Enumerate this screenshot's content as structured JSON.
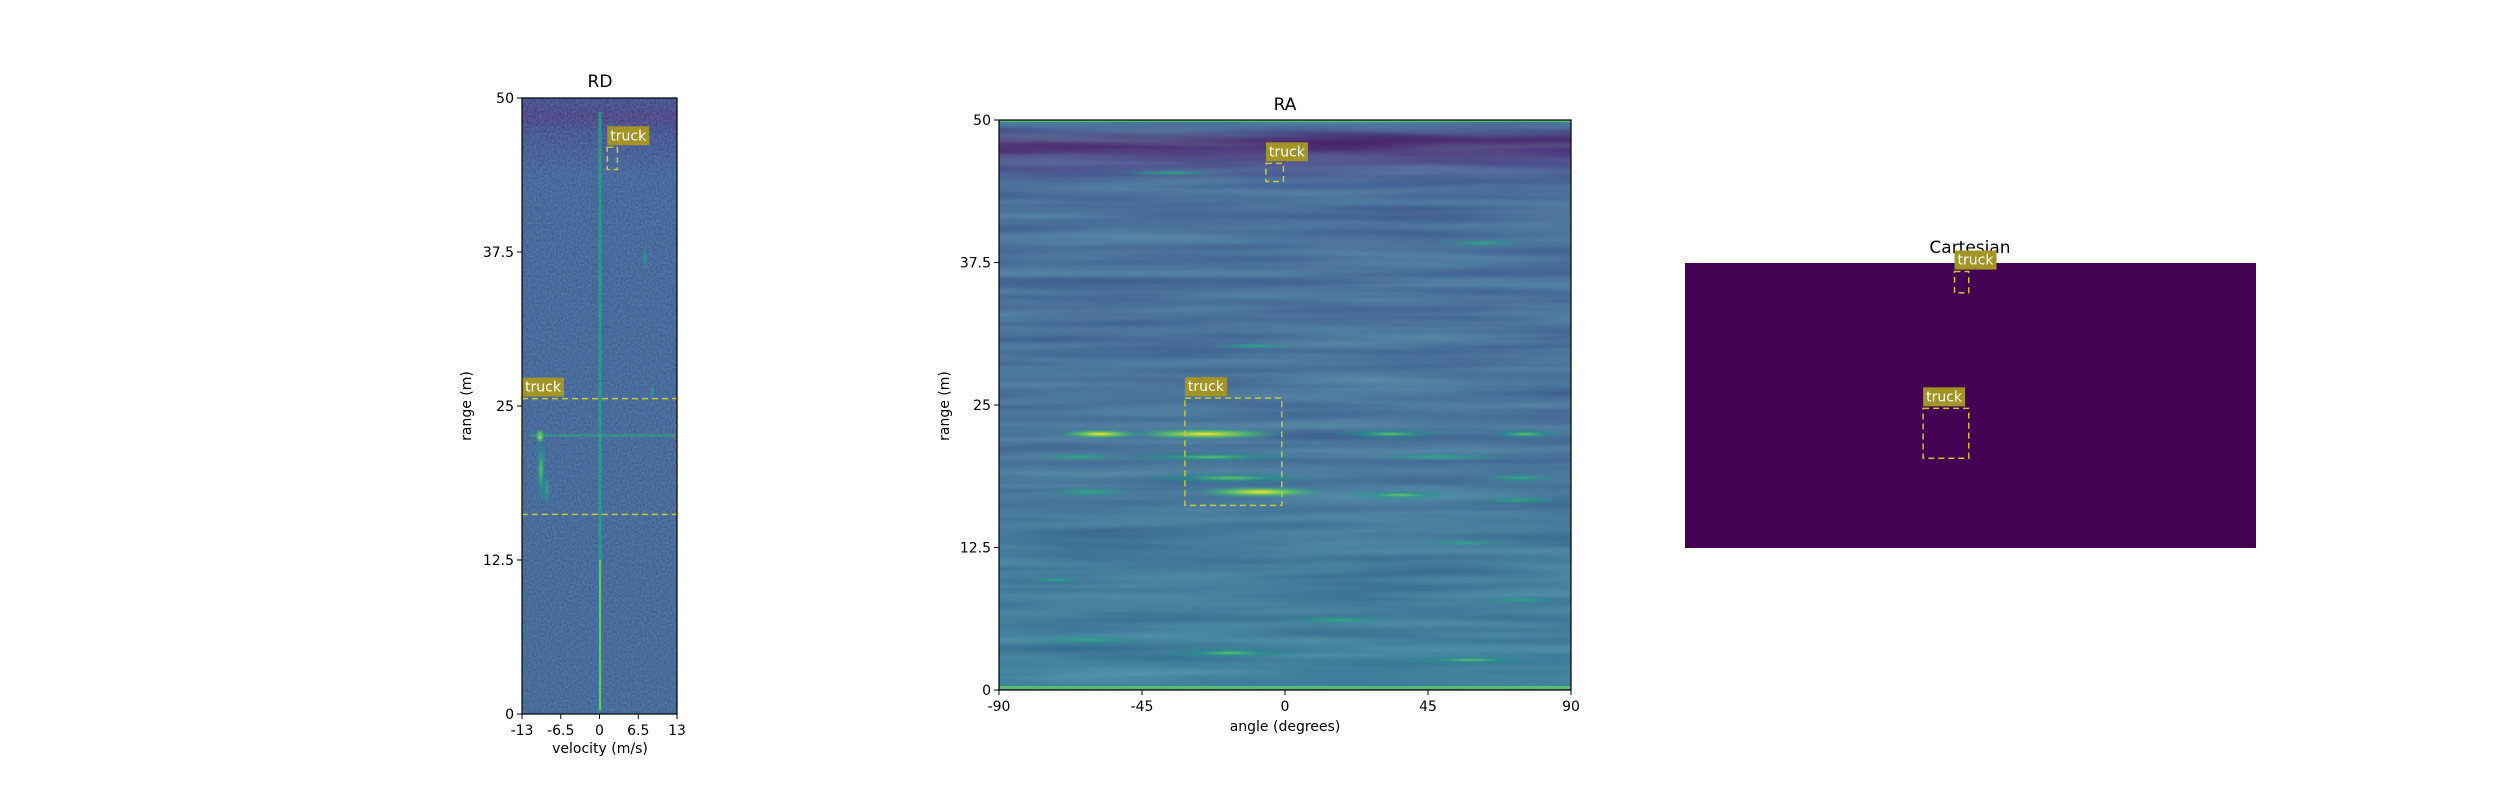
{
  "chart_data": [
    {
      "type": "heatmap",
      "title": "RD",
      "xlabel": "velocity (m/s)",
      "ylabel": "range (m)",
      "xlim": [
        -13,
        13
      ],
      "ylim": [
        0,
        50
      ],
      "xticks": [
        "-13",
        "-6.5",
        "0",
        "6.5",
        "13"
      ],
      "yticks": [
        "0",
        "12.5",
        "25",
        "37.5",
        "50"
      ],
      "colormap": "viridis",
      "detections": [
        {
          "label": "truck",
          "x_range": [
            1.3,
            3.0
          ],
          "y_range": [
            44.2,
            46.0
          ]
        },
        {
          "label": "truck",
          "x_range": [
            -13,
            13
          ],
          "y_range": [
            16.2,
            25.6
          ]
        }
      ]
    },
    {
      "type": "heatmap",
      "title": "RA",
      "xlabel": "angle (degrees)",
      "ylabel": "range (m)",
      "xlim": [
        -90,
        90
      ],
      "ylim": [
        0,
        50
      ],
      "xticks": [
        "-90",
        "-45",
        "0",
        "45",
        "90"
      ],
      "yticks": [
        "0",
        "12.5",
        "25",
        "37.5",
        "50"
      ],
      "colormap": "viridis",
      "detections": [
        {
          "label": "truck",
          "x_range": [
            -6,
            -0.5
          ],
          "y_range": [
            44.6,
            46.2
          ]
        },
        {
          "label": "truck",
          "x_range": [
            -31.5,
            -1
          ],
          "y_range": [
            16.2,
            25.6
          ]
        }
      ]
    },
    {
      "type": "heatmap",
      "title": "Cartesian",
      "xlabel": "",
      "ylabel": "",
      "background": "#440154",
      "detections": [
        {
          "label": "truck",
          "x_range": [
            0.472,
            0.497
          ],
          "y_range": [
            0.03,
            0.105
          ]
        },
        {
          "label": "truck",
          "x_range": [
            0.417,
            0.497
          ],
          "y_range": [
            0.51,
            0.685
          ]
        }
      ]
    }
  ],
  "colors": {
    "box": "#c8c832",
    "label_bg": "#a39426",
    "label_text": "#ffffff",
    "viridis_dark": "#440154",
    "viridis_mid": "#3b528b",
    "viridis_teal": "#21918c",
    "viridis_green": "#5ec962",
    "viridis_yellow": "#fde725"
  }
}
